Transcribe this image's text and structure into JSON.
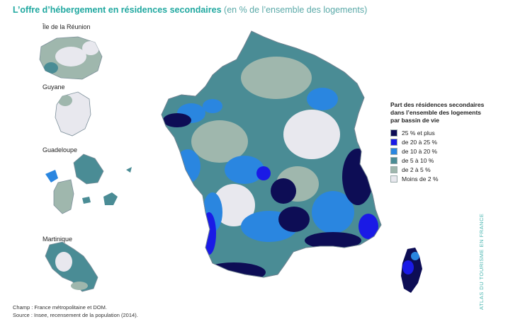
{
  "title": {
    "main": "L’offre d’hébergement en résidences secondaires",
    "sub": "(en % de l’ensemble des logements)"
  },
  "inset_labels": {
    "reunion": "Île de la Réunion",
    "guyane": "Guyane",
    "guadeloupe": "Guadeloupe",
    "martinique": "Martinique"
  },
  "legend": {
    "title": "Part des résidences secondaires dans l’ensemble des logements par bassin de vie",
    "items": [
      {
        "label": "25 % et plus",
        "color": "#0d0d55"
      },
      {
        "label": "de 20 à 25 %",
        "color": "#1a1ae6"
      },
      {
        "label": "de 10 à 20 %",
        "color": "#2a86e0"
      },
      {
        "label": "de 5 à 10 %",
        "color": "#4a8c95"
      },
      {
        "label": "de 2 à 5 %",
        "color": "#9fb7ad"
      },
      {
        "label": "Moins de 2 %",
        "color": "#e8e8ee"
      }
    ]
  },
  "footer": {
    "champ": "Champ : France métropolitaine et DOM.",
    "source": "Source : Insee, recensement de la population (2014)."
  },
  "side_text": "ATLAS DU TOURISME EN FRANCE",
  "colors": {
    "very_high": "#0d0d55",
    "high": "#1a1ae6",
    "medium": "#2a86e0",
    "low": "#4a8c95",
    "very_low": "#9fb7ad",
    "minimal": "#e8e8ee"
  }
}
